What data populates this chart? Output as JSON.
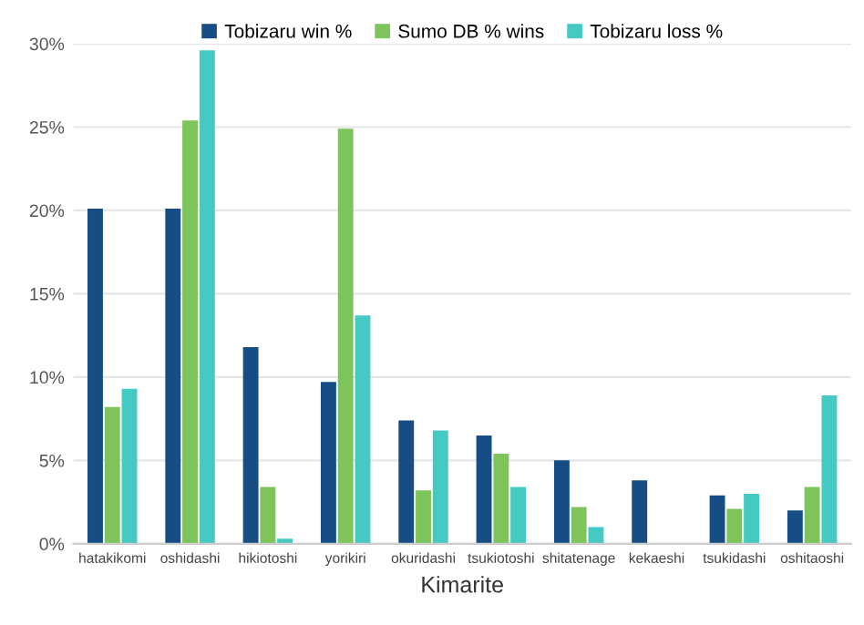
{
  "chart_data": {
    "type": "bar",
    "xlabel": "Kimarite",
    "categories": [
      "hatakikomi",
      "oshidashi",
      "hikiotoshi",
      "yorikiri",
      "okuridashi",
      "tsukiotoshi",
      "shitatenage",
      "kekaeshi",
      "tsukidashi",
      "oshitaoshi"
    ],
    "series": [
      {
        "name": "Tobizaru win %",
        "color": "#154d84",
        "values": [
          20.1,
          20.1,
          11.8,
          9.7,
          7.4,
          6.5,
          5.0,
          3.8,
          2.9,
          2.0
        ]
      },
      {
        "name": "Sumo DB % wins",
        "color": "#7dc45a",
        "values": [
          8.2,
          25.4,
          3.4,
          24.9,
          3.2,
          5.4,
          2.2,
          0,
          2.1,
          3.4
        ]
      },
      {
        "name": "Tobizaru loss %",
        "color": "#45c9c3",
        "values": [
          9.3,
          29.6,
          0.3,
          13.7,
          6.8,
          3.4,
          1.0,
          0,
          3.0,
          8.9
        ]
      }
    ],
    "ylim": [
      0,
      30
    ],
    "yticks": [
      {
        "value": 0,
        "label": "0%"
      },
      {
        "value": 5,
        "label": "5%"
      },
      {
        "value": 10,
        "label": "10%"
      },
      {
        "value": 15,
        "label": "15%"
      },
      {
        "value": 20,
        "label": "20%"
      },
      {
        "value": 25,
        "label": "25%"
      },
      {
        "value": 30,
        "label": "30%"
      }
    ],
    "grid": "y",
    "legend": "top"
  }
}
